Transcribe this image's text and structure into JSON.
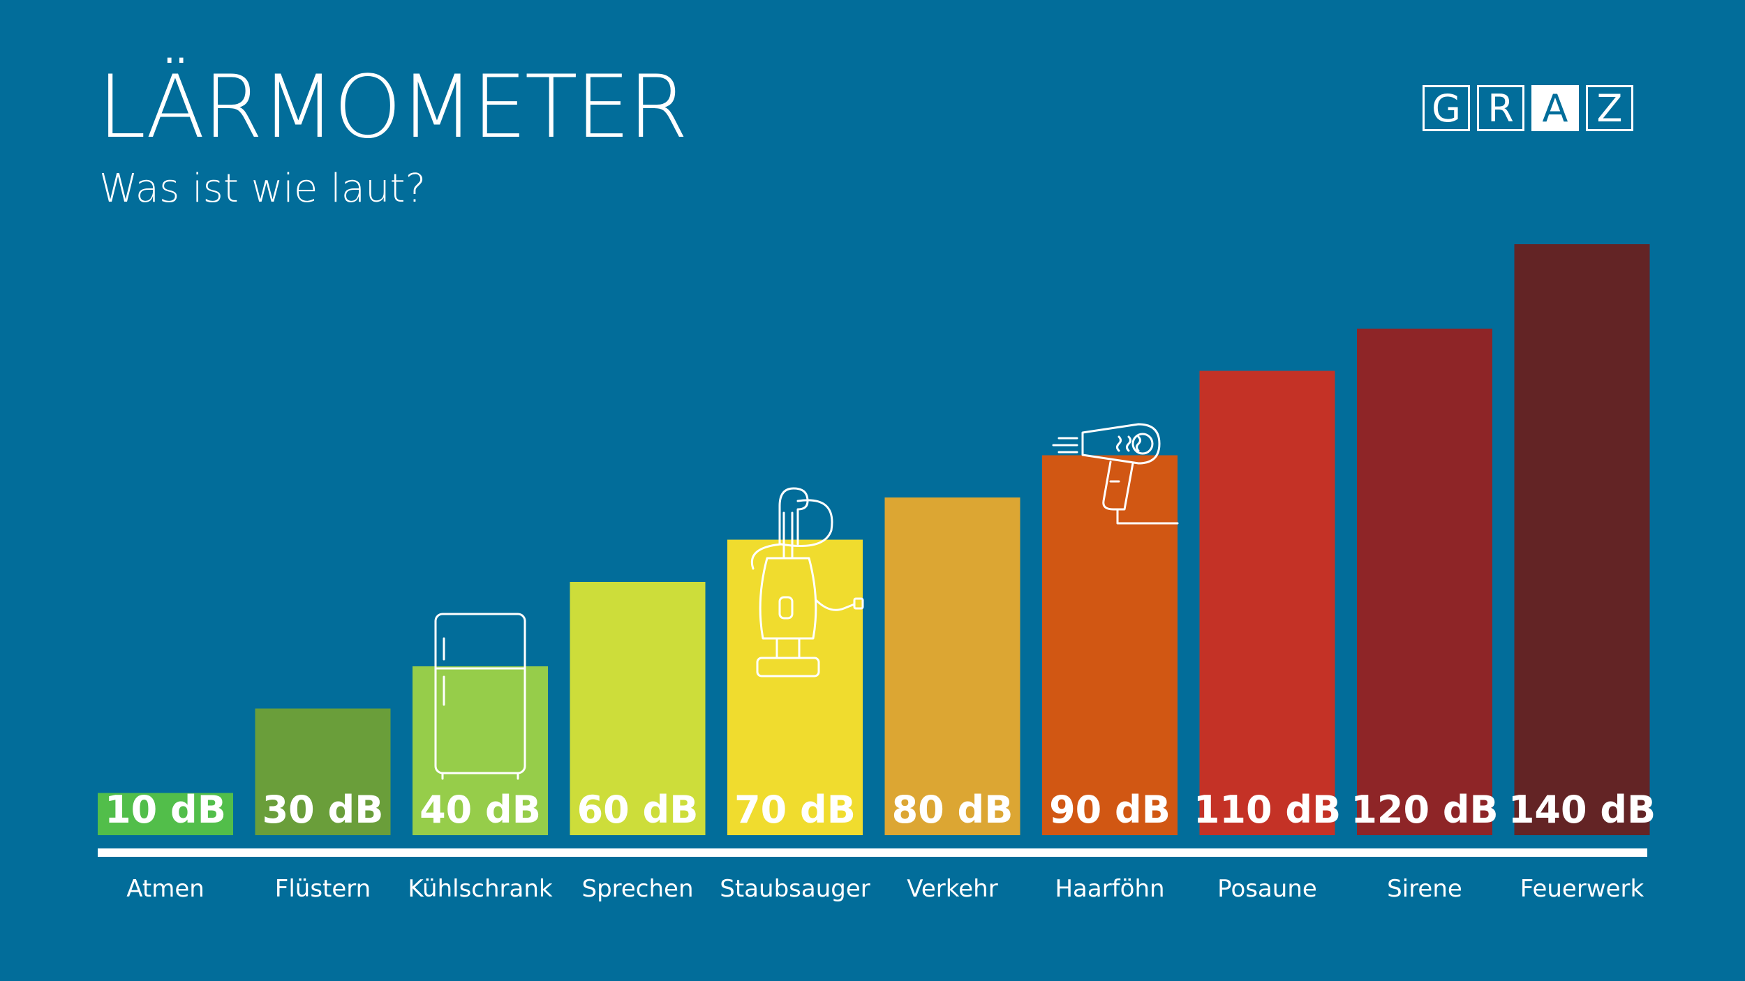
{
  "header": {
    "title": "LÄRMOMETER",
    "subtitle": "Was ist wie laut?"
  },
  "logo": {
    "letters": [
      "G",
      "R",
      "A",
      "Z"
    ],
    "inverted_letter_index": 2
  },
  "chart_data": {
    "type": "bar",
    "title": "LÄRMOMETER",
    "subtitle": "Was ist wie laut?",
    "categories": [
      "Atmen",
      "Flüstern",
      "Kühlschrank",
      "Sprechen",
      "Staubsauger",
      "Verkehr",
      "Haarföhn",
      "Posaune",
      "Sirene",
      "Feuerwerk"
    ],
    "values": [
      10,
      30,
      40,
      60,
      70,
      80,
      90,
      110,
      120,
      140
    ],
    "value_labels": [
      "10 dB",
      "30 dB",
      "40 dB",
      "60 dB",
      "70 dB",
      "80 dB",
      "90 dB",
      "110 dB",
      "120 dB",
      "140 dB"
    ],
    "unit": "dB",
    "colors": [
      "#52be4a",
      "#6a9e3a",
      "#96cd4a",
      "#cddd3a",
      "#f0dc2e",
      "#dca633",
      "#d15713",
      "#c43226",
      "#8e2527",
      "#632425"
    ],
    "icons": {
      "Kühlschrank": "fridge-icon",
      "Staubsauger": "vacuum-cleaner-icon",
      "Haarföhn": "hair-dryer-icon"
    },
    "xlabel": "",
    "ylabel": "",
    "grid": false,
    "legend": "none"
  },
  "colors": {
    "background": "#026d9a",
    "text": "#ffffff",
    "baseline": "#ffffff"
  }
}
